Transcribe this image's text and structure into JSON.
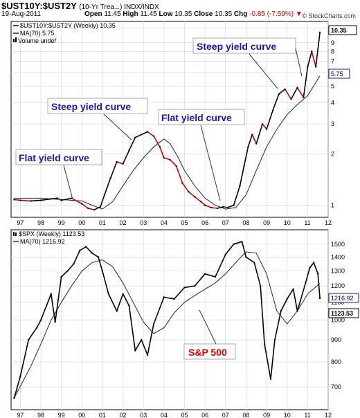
{
  "header": {
    "symbol": "$UST10Y:$UST2Y",
    "description": "(10-Yr Trea...) INDX/INDX",
    "date": "19-Aug-2011",
    "open_label": "Open",
    "open": "11.45",
    "high_label": "High",
    "high": "11.45",
    "low_label": "Low",
    "low": "10.35",
    "close_label": "Close",
    "close": "10.35",
    "chg_label": "Chg",
    "chg": "-0.85 (-7.59%)",
    "brand": "© StockCharts.com"
  },
  "colors": {
    "price": "#000000",
    "price_red": "#cc0000",
    "ma": "#1a1a80",
    "annotation": "#1a1aa6",
    "annotation_red": "#d40000",
    "grid": "#d8d8d8"
  },
  "chart_data": [
    {
      "type": "line",
      "scale": "log",
      "legend": [
        "$UST10Y:$UST2Y (Weekly) 10.35",
        "MA(70) 5.75",
        "Volume undef"
      ],
      "x": [
        1996.7,
        1997.0,
        1997.5,
        1998.0,
        1998.5,
        1998.8,
        1999.0,
        1999.5,
        2000.0,
        2000.3,
        2000.6,
        2000.9,
        2001.1,
        2001.4,
        2001.7,
        2002.0,
        2002.3,
        2002.6,
        2002.9,
        2003.2,
        2003.5,
        2003.8,
        2004.0,
        2004.3,
        2004.6,
        2004.9,
        2005.2,
        2005.5,
        2005.8,
        2006.0,
        2006.3,
        2006.6,
        2006.9,
        2007.1,
        2007.4,
        2007.7,
        2007.9,
        2008.1,
        2008.3,
        2008.5,
        2008.8,
        2009.0,
        2009.3,
        2009.6,
        2009.9,
        2010.2,
        2010.5,
        2010.8,
        2011.0,
        2011.2,
        2011.4,
        2011.6
      ],
      "y": [
        1.08,
        1.07,
        1.06,
        1.07,
        1.09,
        1.1,
        1.07,
        1.1,
        1.02,
        0.96,
        0.94,
        0.98,
        1.15,
        1.45,
        1.8,
        1.75,
        2.1,
        2.5,
        2.6,
        2.7,
        2.55,
        2.2,
        1.9,
        1.85,
        1.7,
        1.35,
        1.2,
        1.12,
        1.05,
        1.0,
        0.97,
        0.96,
        0.98,
        0.97,
        1.0,
        1.3,
        1.7,
        2.2,
        2.6,
        2.3,
        3.0,
        2.8,
        3.6,
        4.5,
        4.8,
        4.2,
        4.9,
        4.3,
        6.5,
        8.0,
        6.5,
        10.35
      ],
      "ma_x": [
        1996.7,
        1998.0,
        1999.0,
        2000.0,
        2000.5,
        2001.0,
        2001.5,
        2002.0,
        2002.5,
        2003.0,
        2003.5,
        2004.0,
        2004.3,
        2004.7,
        2005.0,
        2005.5,
        2006.0,
        2006.5,
        2007.0,
        2007.5,
        2008.0,
        2008.5,
        2009.0,
        2009.5,
        2010.0,
        2010.5,
        2011.0,
        2011.6
      ],
      "ma_y": [
        1.1,
        1.1,
        1.08,
        1.06,
        1.0,
        0.95,
        1.05,
        1.3,
        1.6,
        1.9,
        2.2,
        2.45,
        2.3,
        1.9,
        1.6,
        1.3,
        1.1,
        1.0,
        0.95,
        0.97,
        1.15,
        1.6,
        2.2,
        2.8,
        3.4,
        3.9,
        4.4,
        5.75
      ],
      "y_ticks": [
        1,
        2,
        3,
        4,
        5,
        6,
        7,
        8,
        9,
        11
      ],
      "ylim": [
        0.85,
        12.0
      ],
      "x_ticks": [
        "97",
        "98",
        "99",
        "00",
        "01",
        "02",
        "03",
        "04",
        "05",
        "06",
        "07",
        "08",
        "09",
        "10",
        "11",
        "12"
      ],
      "last_label": "10.35",
      "ma_label": "5.75",
      "annotations": [
        "Flat yield curve",
        "Steep yield curve",
        "Flat yield curve",
        "Steep yield curve"
      ]
    },
    {
      "type": "line",
      "scale": "log",
      "legend": [
        "$SPX (Weekly) 1123.53",
        "MA(70) 1216.92"
      ],
      "x": [
        1996.7,
        1997.0,
        1997.4,
        1997.8,
        1998.0,
        1998.5,
        1998.7,
        1999.0,
        1999.3,
        1999.6,
        1999.9,
        2000.2,
        2000.5,
        2000.8,
        2001.0,
        2001.3,
        2001.7,
        2002.0,
        2002.3,
        2002.6,
        2002.9,
        2003.2,
        2003.5,
        2004.0,
        2004.5,
        2005.0,
        2005.5,
        2006.0,
        2006.5,
        2007.0,
        2007.4,
        2007.8,
        2008.0,
        2008.4,
        2008.7,
        2008.9,
        2009.2,
        2009.4,
        2009.7,
        2010.0,
        2010.3,
        2010.5,
        2010.9,
        2011.1,
        2011.3,
        2011.5,
        2011.6
      ],
      "y": [
        660,
        740,
        900,
        960,
        1000,
        1150,
        990,
        1260,
        1300,
        1350,
        1450,
        1480,
        1430,
        1400,
        1300,
        1150,
        1050,
        1150,
        1080,
        850,
        900,
        830,
        980,
        1130,
        1120,
        1190,
        1200,
        1280,
        1260,
        1420,
        1500,
        1520,
        1400,
        1360,
        1200,
        880,
        730,
        900,
        1050,
        1120,
        1180,
        1050,
        1220,
        1320,
        1360,
        1280,
        1123.53
      ],
      "ma_x": [
        1996.7,
        1997.5,
        1998.0,
        1998.5,
        1999.0,
        1999.5,
        2000.0,
        2000.5,
        2001.0,
        2001.5,
        2002.0,
        2002.5,
        2003.0,
        2003.5,
        2004.0,
        2004.5,
        2005.0,
        2005.5,
        2006.0,
        2006.5,
        2007.0,
        2007.5,
        2008.0,
        2008.5,
        2009.0,
        2009.5,
        2010.0,
        2010.5,
        2011.0,
        2011.6
      ],
      "ma_y": [
        660,
        780,
        880,
        1000,
        1100,
        1200,
        1300,
        1360,
        1380,
        1330,
        1220,
        1100,
        990,
        930,
        960,
        1040,
        1100,
        1140,
        1180,
        1220,
        1280,
        1360,
        1440,
        1430,
        1280,
        1050,
        980,
        1050,
        1150,
        1216.92
      ],
      "y_ticks": [
        700,
        800,
        900,
        1000,
        1100,
        1200,
        1300,
        1400,
        1500
      ],
      "ylim": [
        620,
        1620
      ],
      "x_ticks": [
        "97",
        "98",
        "99",
        "00",
        "01",
        "02",
        "03",
        "04",
        "05",
        "06",
        "07",
        "08",
        "09",
        "10",
        "11",
        "12"
      ],
      "last_label": "1123.53",
      "ma_label": "1216.92",
      "annotations": [
        "S&P 500"
      ]
    }
  ]
}
